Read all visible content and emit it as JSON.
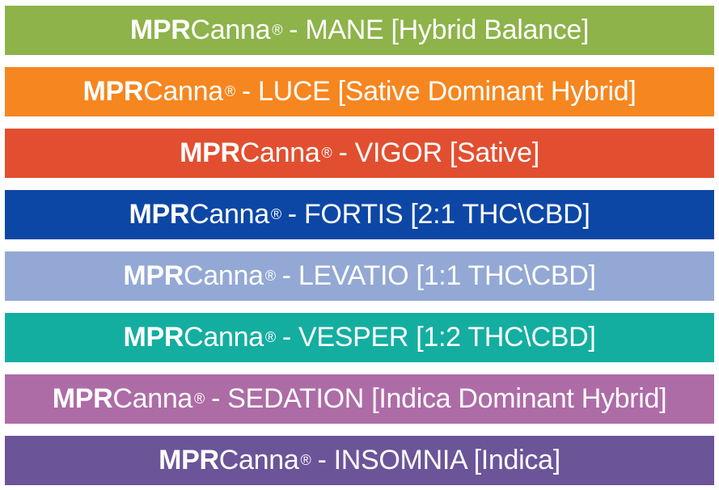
{
  "brand": {
    "bold": "MPR",
    "regular": "Canna",
    "mark": "®"
  },
  "rows": [
    {
      "text": "- MANE [Hybrid Balance]",
      "color": "#8db34a"
    },
    {
      "text": "- LUCE [Sative Dominant Hybrid]",
      "color": "#f6861f"
    },
    {
      "text": "- VIGOR [Sative]",
      "color": "#e24f30"
    },
    {
      "text": "- FORTIS [2:1 THC\\CBD]",
      "color": "#0d47a6"
    },
    {
      "text": "- LEVATIO [1:1 THC\\CBD]",
      "color": "#93a8d4"
    },
    {
      "text": "- VESPER [1:2 THC\\CBD]",
      "color": "#14aea0"
    },
    {
      "text": "- SEDATION [Indica Dominant Hybrid]",
      "color": "#ad6ca6"
    },
    {
      "text": "- INSOMNIA [Indica]",
      "color": "#6b5498"
    }
  ]
}
